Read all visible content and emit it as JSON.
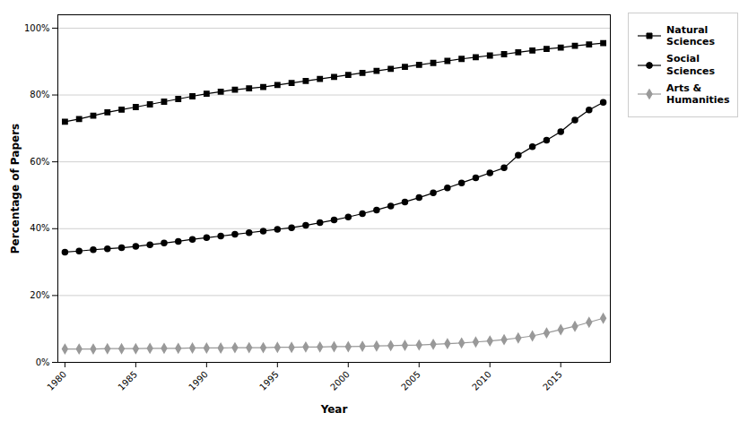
{
  "chart_data": {
    "type": "line",
    "xlabel": "Year",
    "ylabel": "Percentage of Papers",
    "x": [
      1980,
      1981,
      1982,
      1983,
      1984,
      1985,
      1986,
      1987,
      1988,
      1989,
      1990,
      1991,
      1992,
      1993,
      1994,
      1995,
      1996,
      1997,
      1998,
      1999,
      2000,
      2001,
      2002,
      2003,
      2004,
      2005,
      2006,
      2007,
      2008,
      2009,
      2010,
      2011,
      2012,
      2013,
      2014,
      2015,
      2016,
      2017,
      2018
    ],
    "series": [
      {
        "name": "Natural\nSciences",
        "color": "#000000",
        "marker": "square",
        "values": [
          0.72,
          0.728,
          0.738,
          0.748,
          0.756,
          0.764,
          0.772,
          0.78,
          0.788,
          0.796,
          0.804,
          0.81,
          0.816,
          0.82,
          0.824,
          0.83,
          0.836,
          0.842,
          0.848,
          0.854,
          0.86,
          0.866,
          0.872,
          0.878,
          0.884,
          0.89,
          0.896,
          0.902,
          0.908,
          0.913,
          0.918,
          0.922,
          0.928,
          0.933,
          0.938,
          0.942,
          0.947,
          0.951,
          0.955
        ]
      },
      {
        "name": "Social\nSciences",
        "color": "#000000",
        "marker": "circle",
        "values": [
          0.33,
          0.333,
          0.337,
          0.34,
          0.343,
          0.347,
          0.352,
          0.357,
          0.362,
          0.368,
          0.373,
          0.378,
          0.383,
          0.388,
          0.393,
          0.398,
          0.403,
          0.41,
          0.418,
          0.426,
          0.435,
          0.445,
          0.456,
          0.468,
          0.48,
          0.493,
          0.507,
          0.522,
          0.537,
          0.552,
          0.567,
          0.582,
          0.62,
          0.645,
          0.665,
          0.69,
          0.725,
          0.755,
          0.778
        ]
      },
      {
        "name": "Arts &\nHumanities",
        "color": "#999999",
        "marker": "diamond",
        "values": [
          0.04,
          0.04,
          0.04,
          0.041,
          0.041,
          0.041,
          0.042,
          0.042,
          0.042,
          0.043,
          0.043,
          0.043,
          0.044,
          0.044,
          0.044,
          0.045,
          0.045,
          0.046,
          0.046,
          0.047,
          0.047,
          0.048,
          0.049,
          0.05,
          0.051,
          0.052,
          0.054,
          0.056,
          0.058,
          0.061,
          0.064,
          0.068,
          0.073,
          0.079,
          0.088,
          0.098,
          0.108,
          0.12,
          0.132
        ]
      }
    ],
    "xlim": [
      1979.5,
      2018.5
    ],
    "xticks": [
      1980,
      1985,
      1990,
      1995,
      2000,
      2005,
      2010,
      2015
    ],
    "ylim": [
      0.0,
      1.04
    ],
    "yticks": [
      {
        "value": 0.0,
        "label": "0%"
      },
      {
        "value": 0.2,
        "label": "20%"
      },
      {
        "value": 0.4,
        "label": "40%"
      },
      {
        "value": 0.6,
        "label": "60%"
      },
      {
        "value": 0.8,
        "label": "80%"
      },
      {
        "value": 1.0,
        "label": "100%"
      }
    ],
    "grid": "y",
    "legend": "right"
  }
}
